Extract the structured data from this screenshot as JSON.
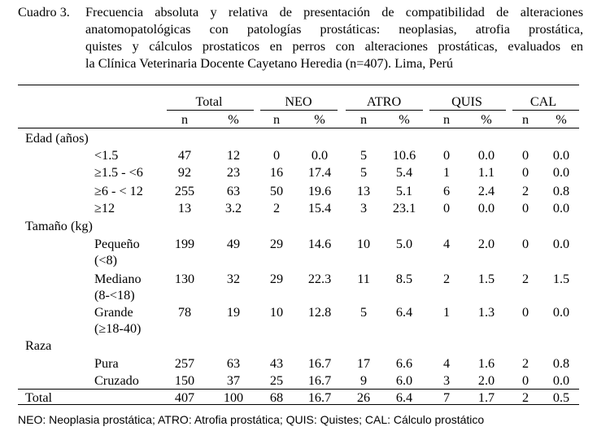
{
  "caption": {
    "label": "Cuadro 3.",
    "lines": [
      "Frecuencia absoluta y relativa de presentación de compatibilidad de alteraciones",
      "anatomopatológicas con patologías prostáticas: neoplasias, atrofia prostática,",
      "quistes y cálculos prostaticos en perros con alteraciones prostáticas, evaluados en",
      "la Clínica Veterinaria Docente Cayetano Heredia (n=407). Lima, Perú"
    ]
  },
  "table": {
    "groups": [
      "Total",
      "NEO",
      "ATRO",
      "QUIS",
      "CAL"
    ],
    "subheaders": [
      "n",
      "%",
      "n",
      "%",
      "n",
      "%",
      "n",
      "%",
      "n",
      "%"
    ],
    "sections": [
      {
        "title": "Edad (años)",
        "rows": [
          {
            "label": [
              "<1.5"
            ],
            "values": [
              "47",
              "12",
              "0",
              "0.0",
              "5",
              "10.6",
              "0",
              "0.0",
              "0",
              "0.0"
            ]
          },
          {
            "label": [
              "≥1.5 - <6"
            ],
            "values": [
              "92",
              "23",
              "16",
              "17.4",
              "5",
              "5.4",
              "1",
              "1.1",
              "0",
              "0.0"
            ]
          },
          {
            "label": [
              "≥6 - < 12"
            ],
            "values": [
              "255",
              "63",
              "50",
              "19.6",
              "13",
              "5.1",
              "6",
              "2.4",
              "2",
              "0.8"
            ]
          },
          {
            "label": [
              "≥12"
            ],
            "values": [
              "13",
              "3.2",
              "2",
              "15.4",
              "3",
              "23.1",
              "0",
              "0.0",
              "0",
              "0.0"
            ]
          }
        ]
      },
      {
        "title": "Tamaño (kg)",
        "rows": [
          {
            "label": [
              "Pequeño",
              "(<8)"
            ],
            "values": [
              "199",
              "49",
              "29",
              "14.6",
              "10",
              "5.0",
              "4",
              "2.0",
              "0",
              "0.0"
            ]
          },
          {
            "label": [
              "Mediano",
              "(8-<18)"
            ],
            "values": [
              "130",
              "32",
              "29",
              "22.3",
              "11",
              "8.5",
              "2",
              "1.5",
              "2",
              "1.5"
            ]
          },
          {
            "label": [
              "Grande",
              "(≥18-40)"
            ],
            "values": [
              "78",
              "19",
              "10",
              "12.8",
              "5",
              "6.4",
              "1",
              "1.3",
              "0",
              "0.0"
            ]
          }
        ]
      },
      {
        "title": "Raza",
        "rows": [
          {
            "label": [
              "Pura"
            ],
            "values": [
              "257",
              "63",
              "43",
              "16.7",
              "17",
              "6.6",
              "4",
              "1.6",
              "2",
              "0.8"
            ]
          },
          {
            "label": [
              "Cruzado"
            ],
            "values": [
              "150",
              "37",
              "25",
              "16.7",
              "9",
              "6.0",
              "3",
              "2.0",
              "0",
              "0.0"
            ]
          }
        ]
      }
    ],
    "total": {
      "label": "Total",
      "values": [
        "407",
        "100",
        "68",
        "16.7",
        "26",
        "6.4",
        "7",
        "1.7",
        "2",
        "0.5"
      ]
    }
  },
  "footnote": "NEO: Neoplasia prostática; ATRO: Atrofia prostática; QUIS: Quistes; CAL: Cálculo prostático"
}
